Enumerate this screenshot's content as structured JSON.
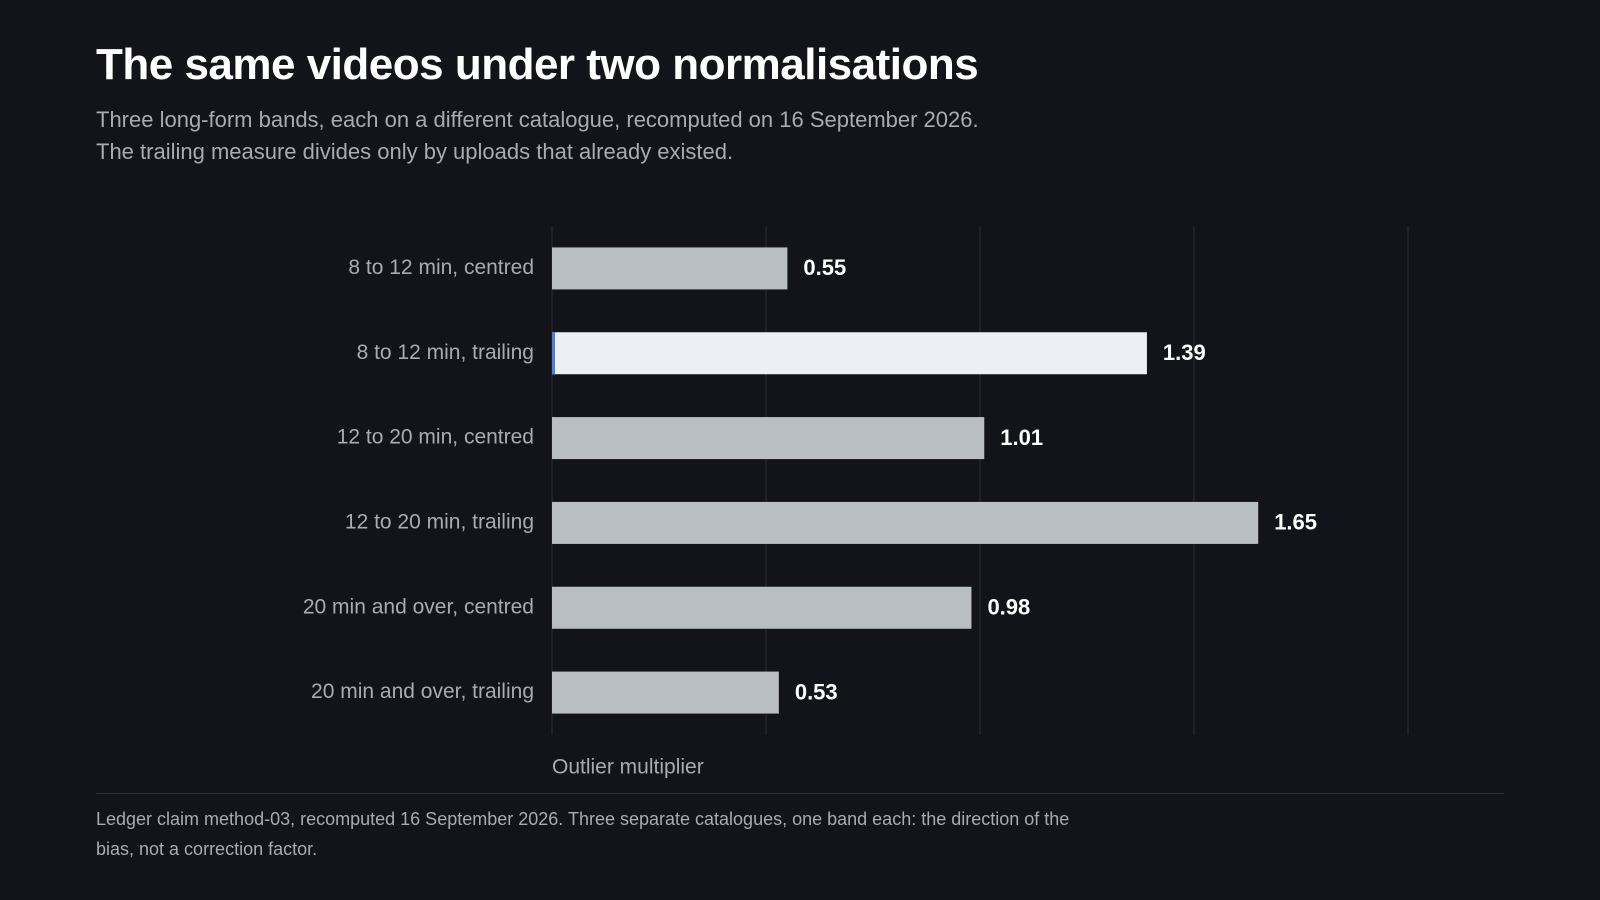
{
  "chart_data": {
    "type": "barh",
    "title": "The same videos under two normalisations",
    "subtitle": "Three long-form bands, each on a different catalogue, recomputed on 16 September 2026. The trailing measure divides only by uploads that already existed.",
    "categories": [
      "8 to 12 min, centred",
      "8 to 12 min, trailing",
      "12 to 20 min, centred",
      "12 to 20 min, trailing",
      "20 min and over, centred",
      "20 min and over, trailing"
    ],
    "values": [
      0.55,
      1.39,
      1.01,
      1.65,
      0.98,
      0.53
    ],
    "color": "#b9bdc4",
    "highlight": 1,
    "highlight_color": "#eceff3",
    "xlabel": "Outlier multiplier",
    "xlim": [
      0,
      2
    ],
    "xticks": [
      0,
      0.5,
      1,
      1.5,
      2
    ],
    "grid": true,
    "footnote": "Ledger claim method-03, recomputed 16 September 2026. Three separate catalogues, one band each: the direction of the bias, not a correction factor."
  }
}
